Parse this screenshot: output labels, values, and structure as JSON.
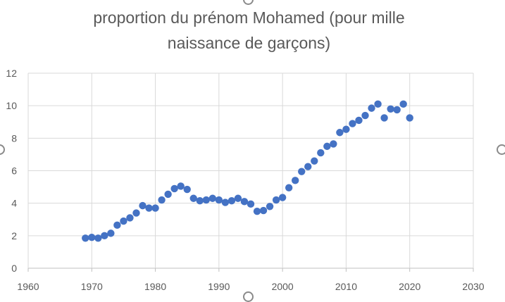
{
  "chart_data": {
    "type": "scatter",
    "title": "proportion du prénom Mohamed (pour mille naissance de garçons)",
    "title_lines": [
      "proportion du prénom Mohamed (pour mille",
      "naissance de garçons)"
    ],
    "xlabel": "",
    "ylabel": "",
    "xlim": [
      1960,
      2030
    ],
    "ylim": [
      0,
      12
    ],
    "x_ticks": [
      1960,
      1970,
      1980,
      1990,
      2000,
      2010,
      2020,
      2030
    ],
    "y_ticks": [
      0,
      2,
      4,
      6,
      8,
      10,
      12
    ],
    "grid": "horizontal",
    "legend": "none",
    "marker_color": "#4472C4",
    "series": [
      {
        "x": [
          1969,
          1970,
          1971,
          1972,
          1973,
          1974,
          1975,
          1976,
          1977,
          1978,
          1979,
          1980,
          1981,
          1982,
          1983,
          1984,
          1985,
          1986,
          1987,
          1988,
          1989,
          1990,
          1991,
          1992,
          1993,
          1994,
          1995,
          1996,
          1997,
          1998,
          1999,
          2000,
          2001,
          2002,
          2003,
          2004,
          2005,
          2006,
          2007,
          2008,
          2009,
          2010,
          2011,
          2012,
          2013,
          2014,
          2015,
          2016,
          2017,
          2018,
          2019,
          2020
        ],
        "y": [
          1.85,
          1.9,
          1.85,
          2.0,
          2.15,
          2.65,
          2.9,
          3.1,
          3.4,
          3.85,
          3.7,
          3.7,
          4.2,
          4.55,
          4.9,
          5.05,
          4.85,
          4.3,
          4.15,
          4.2,
          4.3,
          4.2,
          4.05,
          4.15,
          4.3,
          4.1,
          3.95,
          3.5,
          3.55,
          3.8,
          4.2,
          4.35,
          4.95,
          5.4,
          5.95,
          6.25,
          6.6,
          7.1,
          7.5,
          7.65,
          8.35,
          8.55,
          8.9,
          9.1,
          9.4,
          9.85,
          10.1,
          9.25,
          9.8,
          9.75,
          10.1,
          9.25
        ]
      }
    ]
  }
}
